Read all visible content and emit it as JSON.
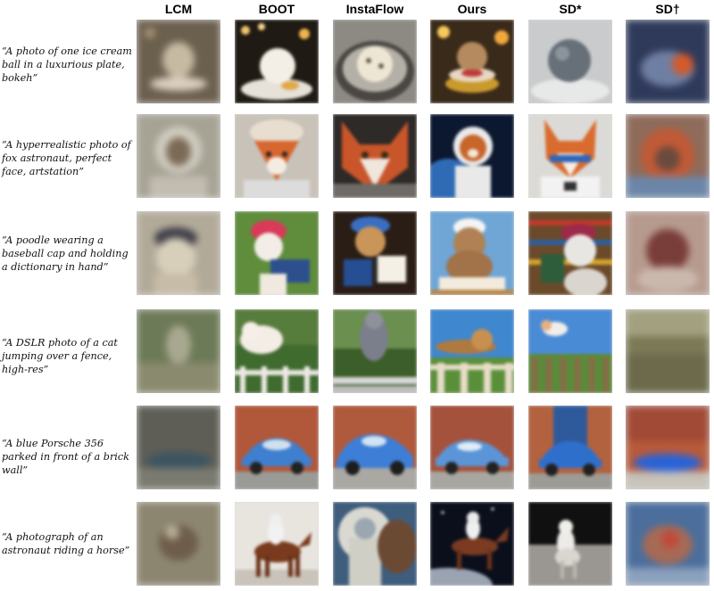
{
  "columns": {
    "lcm": "LCM",
    "boot": "BOOT",
    "instaflow": "InstaFlow",
    "ours": "Ours",
    "sd_star": "SD*",
    "sd_dagger": "SD†"
  },
  "prompts": [
    "“A photo of one ice cream ball in a luxurious plate, bokeh”",
    "“A hyperrealistic photo of fox astronaut, perfect face, artstation”",
    "“A poodle wearing a baseball cap and holding a dictionary in hand”",
    "“A DSLR photo of a cat jumping over a fence, high-res”",
    "“A blue Porsche 356 parked in front of a brick wall”",
    "“A photograph of an astronaut riding a horse”"
  ]
}
